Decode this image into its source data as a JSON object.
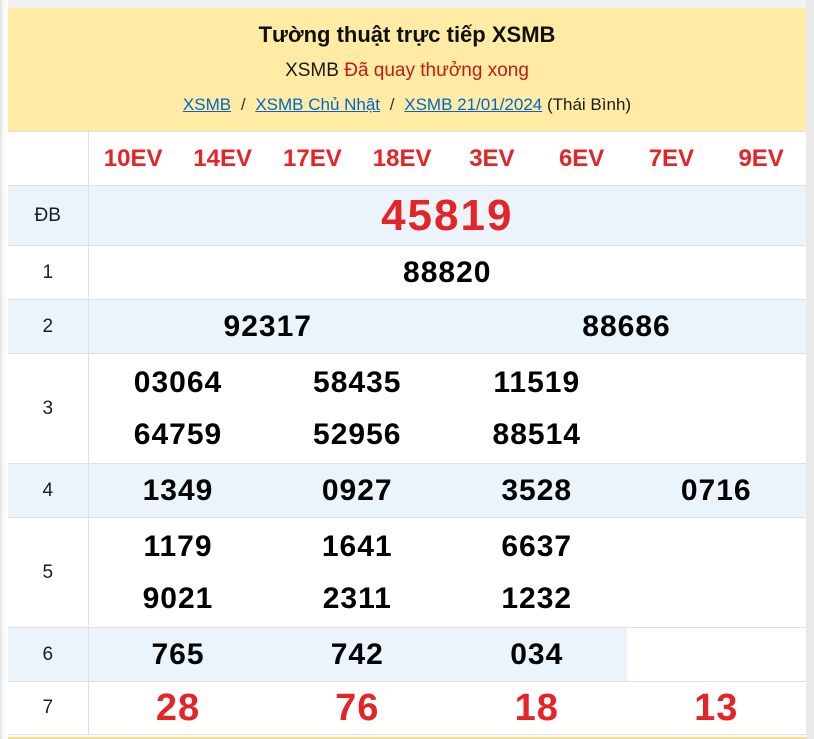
{
  "header": {
    "title": "Tường thuật trực tiếp XSMB",
    "status_prefix": "XSMB",
    "status_text": "Đã quay thưởng xong",
    "breadcrumb": {
      "links": [
        {
          "label": "XSMB"
        },
        {
          "label": "XSMB Chủ Nhật"
        },
        {
          "label": "XSMB 21/01/2024"
        }
      ],
      "separator": "/",
      "suffix": "(Thái Bình)"
    }
  },
  "table": {
    "columns": [
      "10EV",
      "14EV",
      "17EV",
      "18EV",
      "3EV",
      "6EV",
      "7EV",
      "9EV"
    ],
    "rows": [
      {
        "label": "ĐB",
        "special": true,
        "red": true,
        "groups": [
          [
            "45819"
          ]
        ]
      },
      {
        "label": "1",
        "red": false,
        "groups": [
          [
            "88820"
          ]
        ]
      },
      {
        "label": "2",
        "red": false,
        "groups": [
          [
            "92317"
          ],
          [
            "88686"
          ]
        ]
      },
      {
        "label": "3",
        "red": false,
        "groups": [
          [
            "03064",
            "64759"
          ],
          [
            "58435",
            "52956"
          ],
          [
            "11519",
            "88514"
          ]
        ]
      },
      {
        "label": "4",
        "red": false,
        "groups": [
          [
            "1349"
          ],
          [
            "0927"
          ],
          [
            "3528"
          ],
          [
            "0716"
          ]
        ]
      },
      {
        "label": "5",
        "red": false,
        "groups": [
          [
            "1179",
            "9021"
          ],
          [
            "1641",
            "2311"
          ],
          [
            "6637",
            "1232"
          ]
        ]
      },
      {
        "label": "6",
        "red": false,
        "groups": [
          [
            "765"
          ],
          [
            "742"
          ],
          [
            "034"
          ]
        ]
      },
      {
        "label": "7",
        "red": true,
        "groups": [
          [
            "28"
          ],
          [
            "76"
          ],
          [
            "18"
          ],
          [
            "13"
          ]
        ]
      }
    ]
  },
  "colors": {
    "banner_bg": "#FFEBA3",
    "accent_red": "#E42528",
    "status_red": "#C11B1B",
    "link_blue": "#0066CC",
    "shaded_row_bg": "#EBF4FB"
  }
}
